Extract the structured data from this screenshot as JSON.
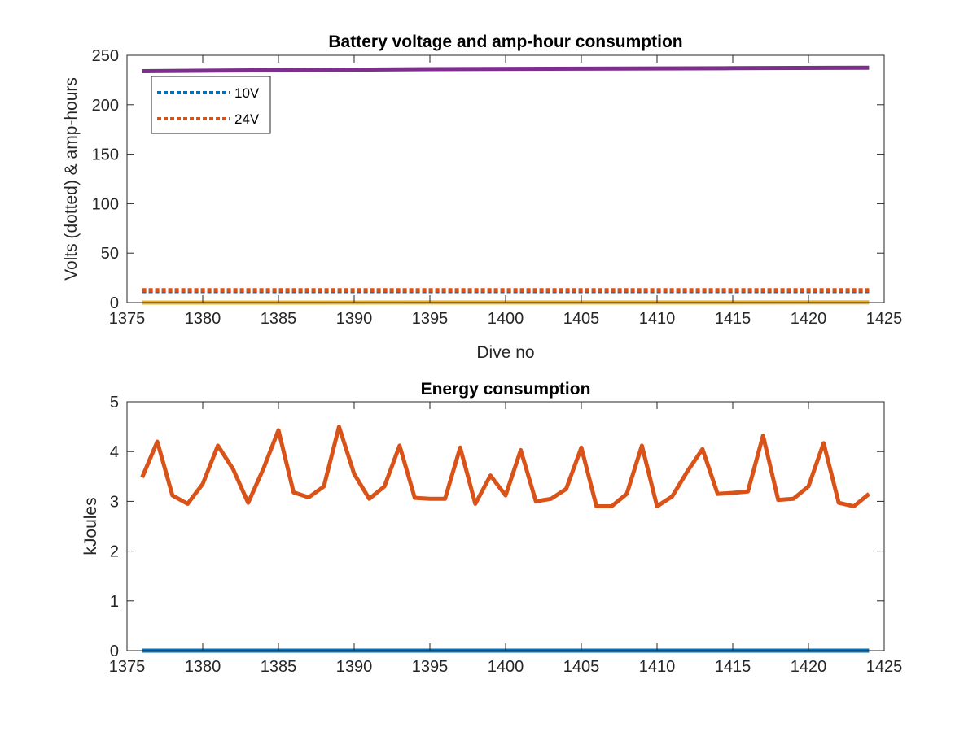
{
  "chart_data": [
    {
      "type": "line",
      "title": "Battery voltage and amp-hour consumption",
      "xlabel": "Dive no",
      "ylabel": "Volts (dotted) & amp-hours",
      "xlim": [
        1375,
        1425
      ],
      "ylim": [
        0,
        250
      ],
      "xticks": [
        1375,
        1380,
        1385,
        1390,
        1395,
        1400,
        1405,
        1410,
        1415,
        1420,
        1425
      ],
      "yticks": [
        0,
        50,
        100,
        150,
        200,
        250
      ],
      "grid": false,
      "legend_position": "top-left",
      "series": [
        {
          "name": "10V",
          "color": "#0072BD",
          "style": "dotted",
          "x": [
            1376,
            1424
          ],
          "y": [
            11.5,
            11.5
          ]
        },
        {
          "name": "24V",
          "color": "#D95319",
          "style": "dotted",
          "x": [
            1376,
            1424
          ],
          "y": [
            12.5,
            12.5
          ]
        },
        {
          "color": "#EDB120",
          "style": "solid",
          "x": [
            1376,
            1424
          ],
          "y": [
            0,
            0.2
          ]
        },
        {
          "color": "#7E2F8E",
          "style": "solid",
          "x": [
            1376,
            1385,
            1395,
            1405,
            1415,
            1424
          ],
          "y": [
            234,
            235,
            236,
            236.5,
            237,
            237.5
          ]
        }
      ]
    },
    {
      "type": "line",
      "title": "Energy consumption",
      "xlabel": "",
      "ylabel": "kJoules",
      "xlim": [
        1375,
        1425
      ],
      "ylim": [
        0,
        5
      ],
      "xticks": [
        1375,
        1380,
        1385,
        1390,
        1395,
        1400,
        1405,
        1410,
        1415,
        1420,
        1425
      ],
      "yticks": [
        0,
        1,
        2,
        3,
        4,
        5
      ],
      "grid": false,
      "series": [
        {
          "color": "#0072BD",
          "style": "solid",
          "x": [
            1376,
            1424
          ],
          "y": [
            0,
            0
          ]
        },
        {
          "color": "#D95319",
          "style": "solid",
          "x": [
            1376,
            1377,
            1378,
            1379,
            1380,
            1381,
            1382,
            1383,
            1384,
            1385,
            1386,
            1387,
            1388,
            1389,
            1390,
            1391,
            1392,
            1393,
            1394,
            1395,
            1396,
            1397,
            1398,
            1399,
            1400,
            1401,
            1402,
            1403,
            1404,
            1405,
            1406,
            1407,
            1408,
            1409,
            1410,
            1411,
            1412,
            1413,
            1414,
            1415,
            1416,
            1417,
            1418,
            1419,
            1420,
            1421,
            1422,
            1423,
            1424
          ],
          "y": [
            3.48,
            4.2,
            3.12,
            2.95,
            3.35,
            4.12,
            3.65,
            2.97,
            3.65,
            4.43,
            3.18,
            3.08,
            3.3,
            4.5,
            3.55,
            3.05,
            3.3,
            4.12,
            3.07,
            3.05,
            3.05,
            4.08,
            2.95,
            3.52,
            3.12,
            4.03,
            3.0,
            3.05,
            3.25,
            4.08,
            2.9,
            2.9,
            3.15,
            4.12,
            2.9,
            3.1,
            3.6,
            4.05,
            3.15,
            3.17,
            3.2,
            4.32,
            3.03,
            3.05,
            3.3,
            4.17,
            2.97,
            2.9,
            3.15
          ]
        }
      ]
    }
  ]
}
